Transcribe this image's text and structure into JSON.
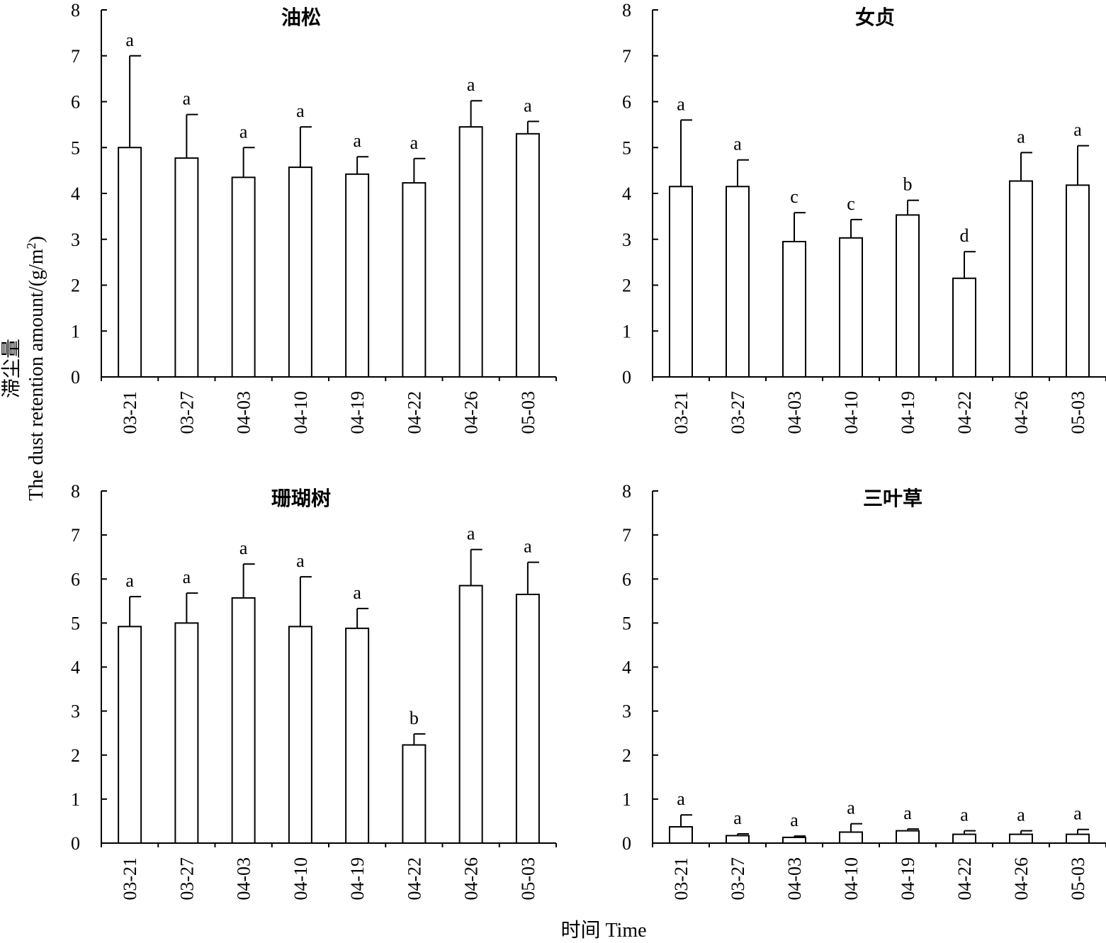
{
  "figure": {
    "ylabel_cn": "滞尘量",
    "ylabel_en": "The dust retention amount/(g/m",
    "ylabel_sup": "2",
    "ylabel_end": ")",
    "xlabel": "时间 Time"
  },
  "chart_data": [
    {
      "type": "bar",
      "title": "油松",
      "categories": [
        "03-21",
        "03-27",
        "04-03",
        "04-10",
        "04-19",
        "04-22",
        "04-26",
        "05-03"
      ],
      "values": [
        5.0,
        4.77,
        4.35,
        4.57,
        4.42,
        4.23,
        5.45,
        5.3
      ],
      "error": [
        2.0,
        0.95,
        0.65,
        0.88,
        0.38,
        0.53,
        0.57,
        0.27
      ],
      "significance": [
        "a",
        "a",
        "a",
        "a",
        "a",
        "a",
        "a",
        "a"
      ],
      "ylim": [
        0,
        8
      ],
      "yticks": [
        "0",
        "1",
        "2",
        "3",
        "4",
        "5",
        "6",
        "7",
        "8"
      ]
    },
    {
      "type": "bar",
      "title": "女贞",
      "categories": [
        "03-21",
        "03-27",
        "04-03",
        "04-10",
        "04-19",
        "04-22",
        "04-26",
        "05-03"
      ],
      "values": [
        4.15,
        4.15,
        2.95,
        3.03,
        3.53,
        2.15,
        4.27,
        4.18
      ],
      "error": [
        1.45,
        0.58,
        0.63,
        0.4,
        0.32,
        0.58,
        0.62,
        0.86
      ],
      "significance": [
        "a",
        "a",
        "c",
        "c",
        "b",
        "d",
        "a",
        "a"
      ],
      "ylim": [
        0,
        8
      ],
      "yticks": [
        "0",
        "1",
        "2",
        "3",
        "4",
        "5",
        "6",
        "7",
        "8"
      ]
    },
    {
      "type": "bar",
      "title": "珊瑚树",
      "categories": [
        "03-21",
        "03-27",
        "04-03",
        "04-10",
        "04-19",
        "04-22",
        "04-26",
        "05-03"
      ],
      "values": [
        4.92,
        5.0,
        5.57,
        4.92,
        4.88,
        2.23,
        5.85,
        5.65
      ],
      "error": [
        0.68,
        0.68,
        0.77,
        1.13,
        0.45,
        0.25,
        0.82,
        0.73
      ],
      "significance": [
        "a",
        "a",
        "a",
        "a",
        "a",
        "b",
        "a",
        "a"
      ],
      "ylim": [
        0,
        8
      ],
      "yticks": [
        "0",
        "1",
        "2",
        "3",
        "4",
        "5",
        "6",
        "7",
        "8"
      ]
    },
    {
      "type": "bar",
      "title": "三叶草",
      "categories": [
        "03-21",
        "03-27",
        "04-03",
        "04-10",
        "04-19",
        "04-22",
        "04-26",
        "05-03"
      ],
      "values": [
        0.37,
        0.17,
        0.13,
        0.25,
        0.28,
        0.2,
        0.2,
        0.2
      ],
      "error": [
        0.27,
        0.04,
        0.03,
        0.19,
        0.04,
        0.08,
        0.08,
        0.11
      ],
      "significance": [
        "a",
        "a",
        "a",
        "a",
        "a",
        "a",
        "a",
        "a"
      ],
      "ylim": [
        0,
        8
      ],
      "yticks": [
        "0",
        "1",
        "2",
        "3",
        "4",
        "5",
        "6",
        "7",
        "8"
      ]
    }
  ]
}
